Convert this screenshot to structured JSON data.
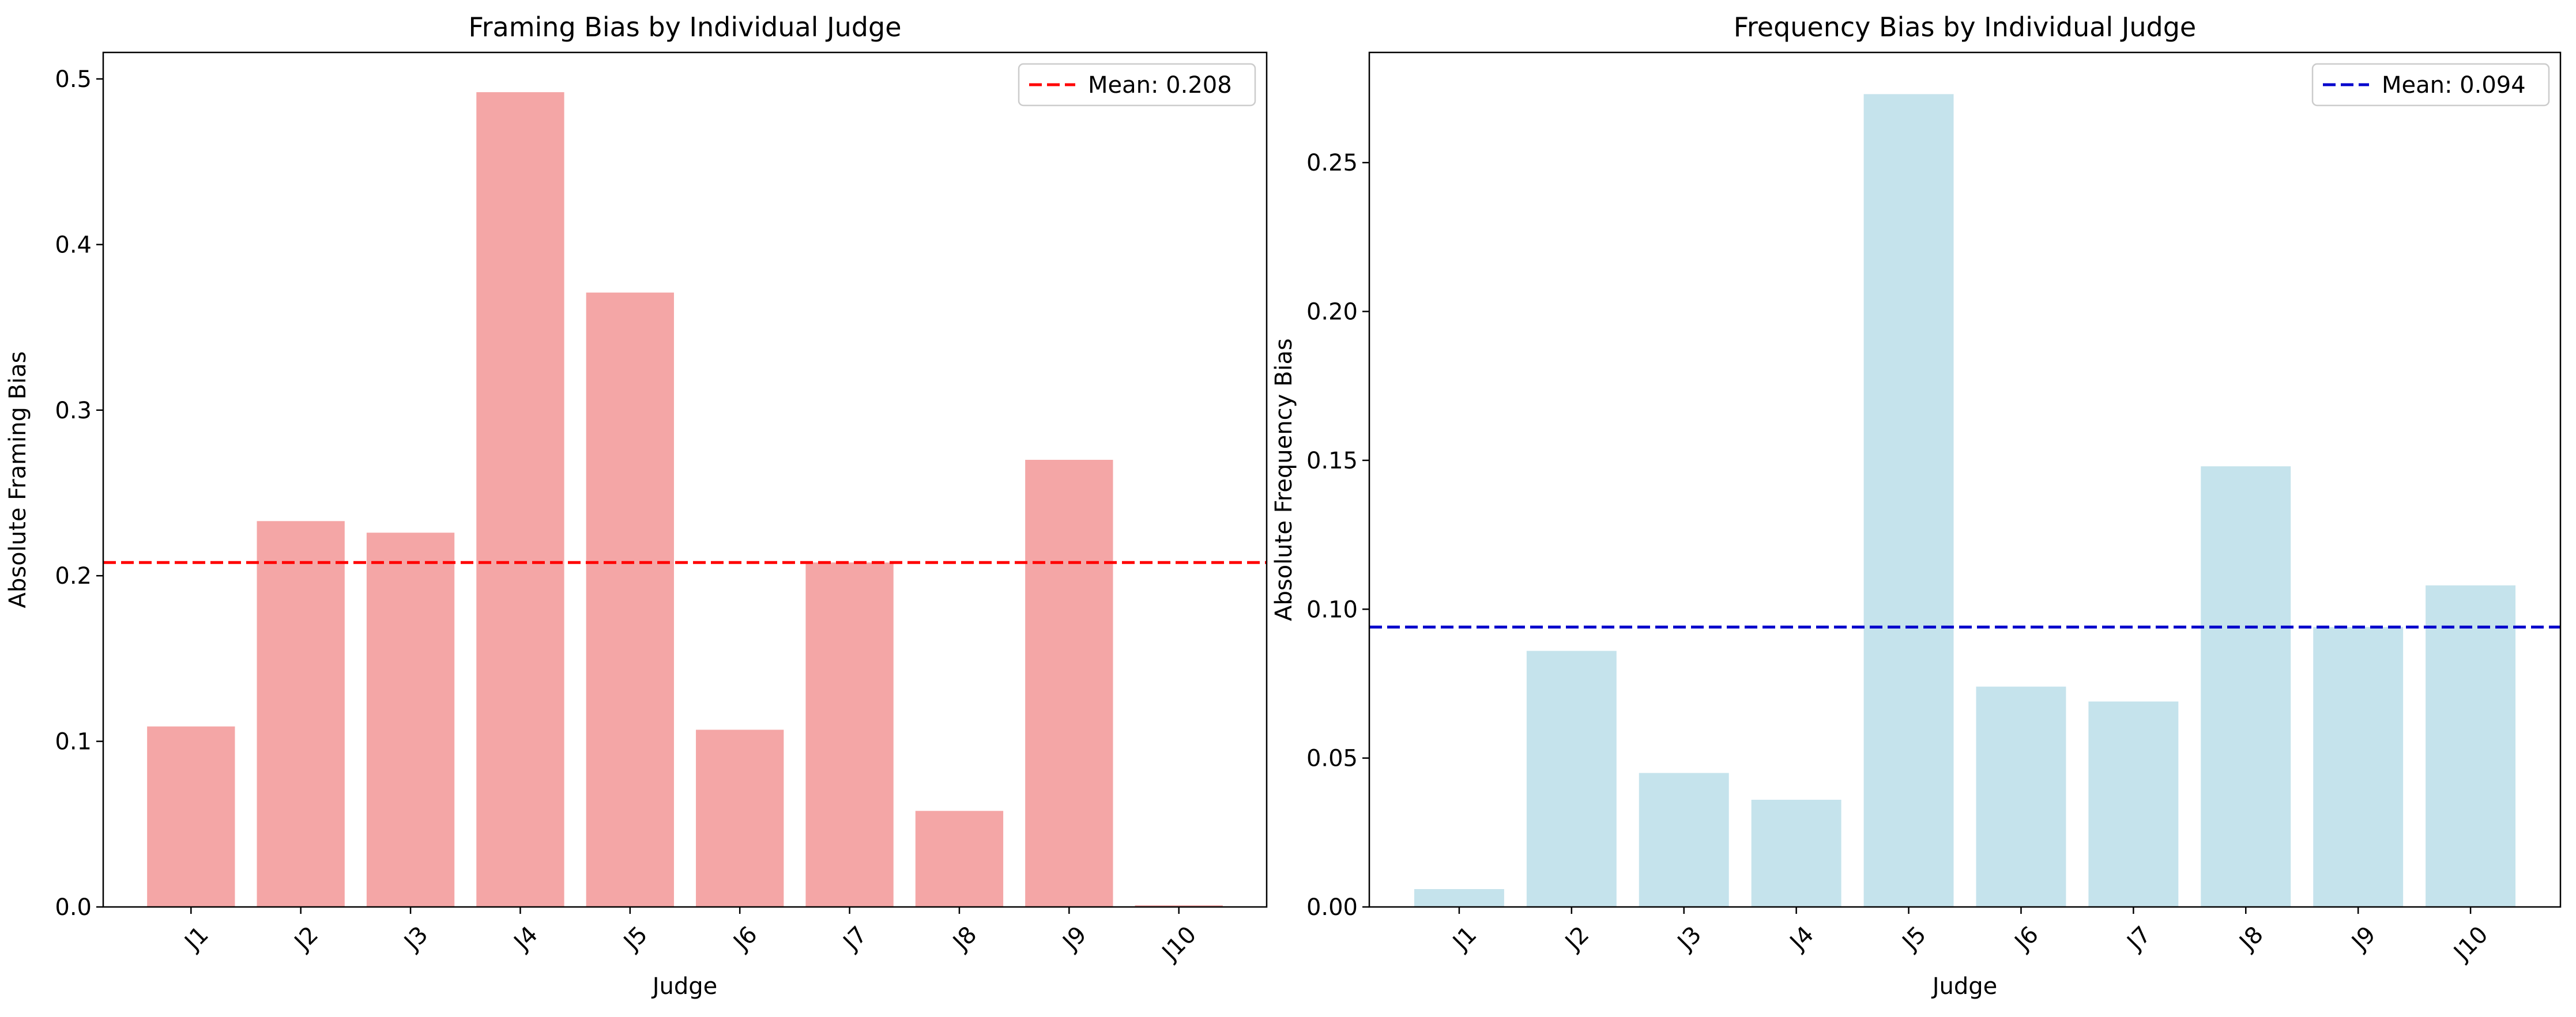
{
  "chart_data": [
    {
      "type": "bar",
      "title": "Framing Bias by Individual Judge",
      "xlabel": "Judge",
      "ylabel": "Absolute Framing Bias",
      "categories": [
        "J1",
        "J2",
        "J3",
        "J4",
        "J5",
        "J6",
        "J7",
        "J8",
        "J9",
        "J10"
      ],
      "values": [
        0.109,
        0.233,
        0.226,
        0.492,
        0.371,
        0.107,
        0.208,
        0.058,
        0.27,
        0.001
      ],
      "ylim": [
        0,
        0.516
      ],
      "yticks": [
        0.0,
        0.1,
        0.2,
        0.3,
        0.4,
        0.5
      ],
      "ytick_labels": [
        "0.0",
        "0.1",
        "0.2",
        "0.3",
        "0.4",
        "0.5"
      ],
      "bar_color": "#f4a6a6",
      "mean": {
        "value": 0.208,
        "label": "Mean: 0.208",
        "color": "#ff0000"
      },
      "legend": "top-right",
      "grid": false
    },
    {
      "type": "bar",
      "title": "Frequency Bias by Individual Judge",
      "xlabel": "Judge",
      "ylabel": "Absolute Frequency Bias",
      "categories": [
        "J1",
        "J2",
        "J3",
        "J4",
        "J5",
        "J6",
        "J7",
        "J8",
        "J9",
        "J10"
      ],
      "values": [
        0.006,
        0.086,
        0.045,
        0.036,
        0.273,
        0.074,
        0.069,
        0.148,
        0.094,
        0.108
      ],
      "ylim": [
        0,
        0.287
      ],
      "yticks": [
        0.0,
        0.05,
        0.1,
        0.15,
        0.2,
        0.25
      ],
      "ytick_labels": [
        "0.00",
        "0.05",
        "0.10",
        "0.15",
        "0.20",
        "0.25"
      ],
      "bar_color": "#c5e3ec",
      "mean": {
        "value": 0.094,
        "label": "Mean: 0.094",
        "color": "#0000cc"
      },
      "legend": "top-right",
      "grid": false
    }
  ]
}
